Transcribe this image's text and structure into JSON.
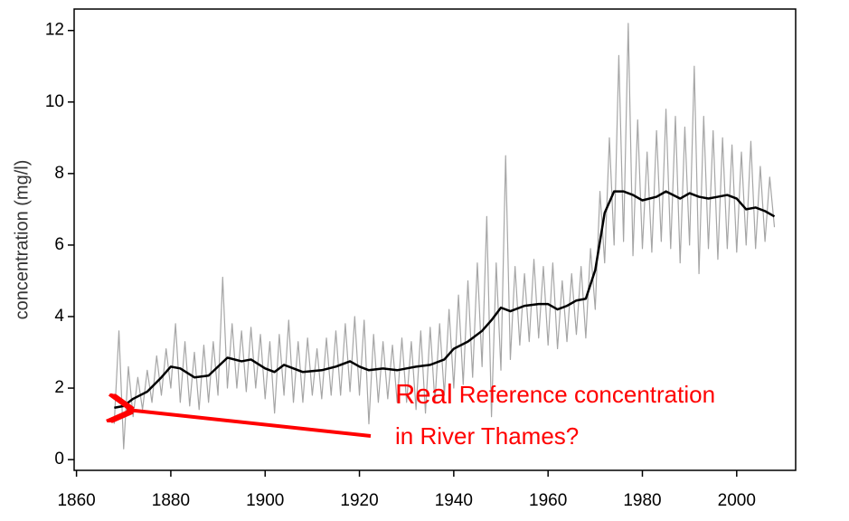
{
  "chart_data": {
    "type": "line",
    "ylabel": "concentration (mg/l)",
    "annotations": [
      "Real",
      "Reference concentration",
      "in River Thames?"
    ],
    "xlim": [
      1859.5,
      2012.5
    ],
    "ylim": [
      -0.3,
      12.6
    ],
    "xticks": [
      1860,
      1880,
      1900,
      1920,
      1940,
      1960,
      1980,
      2000
    ],
    "yticks": [
      0,
      2,
      4,
      6,
      8,
      10,
      12
    ],
    "series": [
      {
        "color": "#a6a6a6",
        "width": 1.2,
        "x": [
          1868,
          1869,
          1870,
          1871,
          1872,
          1873,
          1874,
          1875,
          1876,
          1877,
          1878,
          1879,
          1880,
          1881,
          1882,
          1883,
          1884,
          1885,
          1886,
          1887,
          1888,
          1889,
          1890,
          1891,
          1892,
          1893,
          1894,
          1895,
          1896,
          1897,
          1898,
          1899,
          1900,
          1901,
          1902,
          1903,
          1904,
          1905,
          1906,
          1907,
          1908,
          1909,
          1910,
          1911,
          1912,
          1913,
          1914,
          1915,
          1916,
          1917,
          1918,
          1919,
          1920,
          1921,
          1922,
          1923,
          1924,
          1925,
          1926,
          1927,
          1928,
          1929,
          1930,
          1931,
          1932,
          1933,
          1934,
          1935,
          1936,
          1937,
          1938,
          1939,
          1940,
          1941,
          1942,
          1943,
          1944,
          1945,
          1946,
          1947,
          1948,
          1949,
          1950,
          1951,
          1952,
          1953,
          1954,
          1955,
          1956,
          1957,
          1958,
          1959,
          1960,
          1961,
          1962,
          1963,
          1964,
          1965,
          1966,
          1967,
          1968,
          1969,
          1970,
          1971,
          1972,
          1973,
          1974,
          1975,
          1976,
          1977,
          1978,
          1979,
          1980,
          1981,
          1982,
          1983,
          1984,
          1985,
          1986,
          1987,
          1988,
          1989,
          1990,
          1991,
          1992,
          1993,
          1994,
          1995,
          1996,
          1997,
          1998,
          1999,
          2000,
          2001,
          2002,
          2003,
          2004,
          2005,
          2006,
          2007,
          2008
        ],
        "values": [
          1.0,
          3.6,
          0.3,
          2.6,
          1.2,
          2.3,
          1.4,
          2.5,
          1.6,
          2.9,
          1.8,
          3.1,
          2.0,
          3.8,
          1.6,
          3.3,
          1.5,
          3.0,
          1.4,
          3.2,
          1.6,
          3.3,
          1.8,
          5.1,
          2.0,
          3.8,
          2.0,
          3.6,
          1.9,
          3.7,
          2.0,
          3.5,
          1.7,
          3.3,
          1.3,
          3.5,
          1.8,
          3.9,
          1.6,
          3.3,
          1.6,
          3.4,
          1.8,
          3.1,
          1.7,
          3.4,
          1.8,
          3.6,
          1.8,
          3.8,
          1.9,
          4.0,
          1.8,
          3.9,
          1.0,
          3.5,
          1.6,
          3.3,
          1.7,
          3.2,
          1.6,
          3.4,
          1.6,
          3.3,
          1.4,
          3.6,
          1.3,
          3.7,
          1.6,
          3.8,
          1.8,
          4.2,
          2.0,
          4.6,
          2.1,
          5.0,
          2.3,
          5.5,
          2.6,
          6.8,
          1.2,
          5.5,
          2.5,
          8.5,
          2.8,
          5.4,
          3.2,
          5.2,
          3.3,
          5.6,
          3.4,
          5.4,
          3.2,
          5.5,
          3.1,
          5.0,
          3.3,
          5.2,
          3.5,
          5.4,
          3.4,
          5.9,
          4.2,
          7.5,
          5.5,
          9.0,
          6.0,
          11.3,
          6.1,
          12.2,
          5.7,
          9.5,
          5.9,
          8.6,
          5.8,
          9.2,
          6.1,
          9.8,
          5.9,
          9.6,
          5.5,
          9.3,
          6.0,
          11.0,
          5.2,
          9.6,
          5.9,
          9.2,
          5.6,
          9.0,
          5.9,
          8.8,
          5.8,
          8.6,
          6.0,
          8.9,
          5.9,
          8.2,
          6.1,
          7.9,
          6.5
        ]
      },
      {
        "color": "#000000",
        "width": 2.5,
        "x": [
          1868,
          1870,
          1872,
          1875,
          1878,
          1880,
          1882,
          1885,
          1888,
          1890,
          1892,
          1895,
          1897,
          1900,
          1902,
          1904,
          1906,
          1908,
          1912,
          1915,
          1918,
          1920,
          1922,
          1925,
          1928,
          1930,
          1932,
          1935,
          1938,
          1940,
          1943,
          1946,
          1948,
          1950,
          1952,
          1955,
          1958,
          1960,
          1962,
          1964,
          1966,
          1968,
          1970,
          1972,
          1974,
          1976,
          1978,
          1980,
          1983,
          1985,
          1988,
          1990,
          1992,
          1994,
          1996,
          1998,
          2000,
          2002,
          2004,
          2006,
          2008
        ],
        "values": [
          1.45,
          1.5,
          1.7,
          1.9,
          2.3,
          2.6,
          2.55,
          2.3,
          2.35,
          2.6,
          2.85,
          2.75,
          2.8,
          2.55,
          2.45,
          2.65,
          2.55,
          2.45,
          2.5,
          2.6,
          2.75,
          2.6,
          2.5,
          2.55,
          2.5,
          2.55,
          2.6,
          2.65,
          2.8,
          3.1,
          3.3,
          3.6,
          3.9,
          4.25,
          4.15,
          4.3,
          4.35,
          4.35,
          4.2,
          4.3,
          4.45,
          4.5,
          5.3,
          6.9,
          7.5,
          7.5,
          7.4,
          7.25,
          7.35,
          7.5,
          7.3,
          7.45,
          7.35,
          7.3,
          7.35,
          7.4,
          7.3,
          7.0,
          7.05,
          6.95,
          6.8
        ]
      }
    ]
  }
}
